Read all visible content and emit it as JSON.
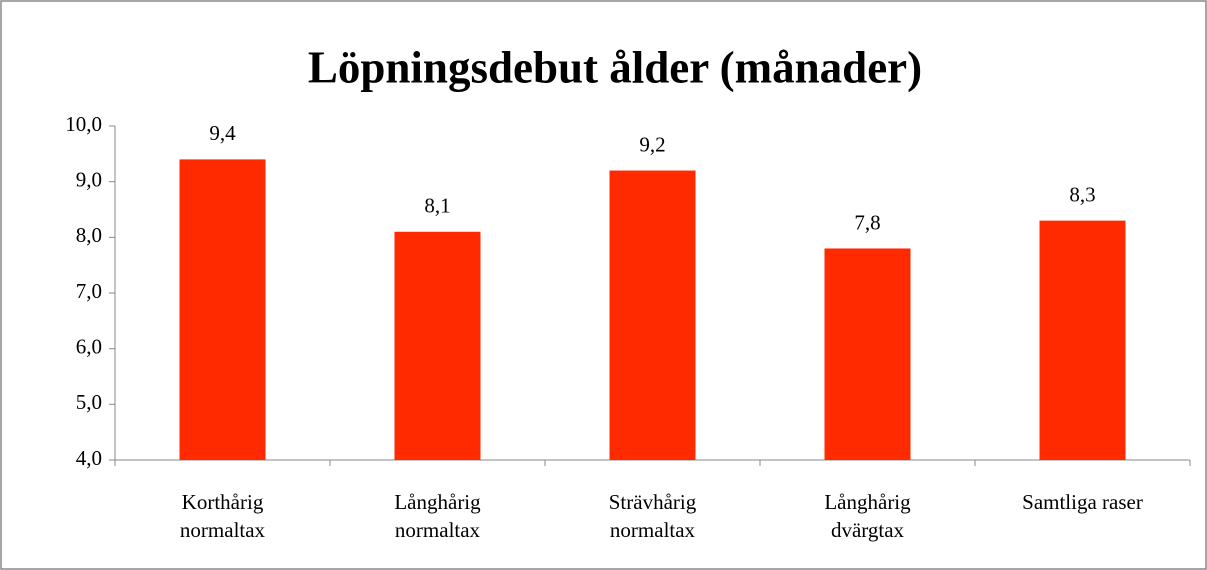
{
  "chart_data": {
    "type": "bar",
    "title": "Löpningsdebut ålder (månader)",
    "categories": [
      "Korthårig\nnormaltax",
      "Långhårig\nnormaltax",
      "Strävhårig\nnormaltax",
      "Långhårig\ndvärgtax",
      "Samtliga raser"
    ],
    "values": [
      9.4,
      8.1,
      9.2,
      7.8,
      8.3
    ],
    "value_labels": [
      "9,4",
      "8,1",
      "9,2",
      "7,8",
      "8,3"
    ],
    "color": "#ff2a00",
    "ylim": [
      4,
      10
    ],
    "yticks": [
      {
        "value": 4,
        "label": "4,0"
      },
      {
        "value": 5,
        "label": "5,0"
      },
      {
        "value": 6,
        "label": "6,0"
      },
      {
        "value": 7,
        "label": "7,0"
      },
      {
        "value": 8,
        "label": "8,0"
      },
      {
        "value": 9,
        "label": "9,0"
      },
      {
        "value": 10,
        "label": "10,0"
      }
    ],
    "grid": false
  }
}
